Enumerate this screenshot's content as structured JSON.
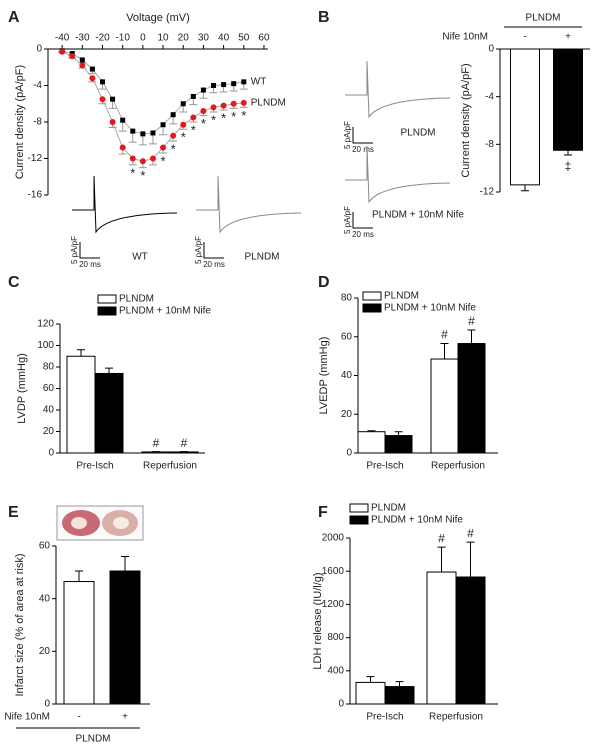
{
  "chart_data": [
    {
      "panel": "A",
      "type": "line",
      "title": "Voltage (mV)",
      "y_label": "Current density (pA/pF)",
      "x": [
        -40,
        -35,
        -30,
        -25,
        -20,
        -15,
        -10,
        -5,
        0,
        5,
        10,
        15,
        20,
        25,
        30,
        35,
        40,
        45,
        50
      ],
      "series": [
        {
          "name": "WT",
          "color": "#000000",
          "marker": "square",
          "values": [
            -0.2,
            -0.5,
            -1.2,
            -2.2,
            -3.6,
            -5.5,
            -7.8,
            -9.0,
            -9.3,
            -9.2,
            -8.3,
            -7.2,
            -6.0,
            -5.2,
            -4.5,
            -4.0,
            -3.9,
            -3.8,
            -3.6
          ],
          "errors": [
            0.1,
            0.2,
            0.3,
            0.5,
            0.8,
            1.0,
            1.2,
            1.2,
            1.2,
            1.2,
            1.1,
            1.0,
            0.9,
            0.9,
            0.9,
            0.8,
            0.8,
            0.8,
            0.8
          ]
        },
        {
          "name": "PLNDM",
          "color": "#e31a1c",
          "marker": "circle",
          "values": [
            -0.3,
            -0.8,
            -1.8,
            -3.2,
            -5.5,
            -8.0,
            -10.8,
            -12.0,
            -12.3,
            -12.0,
            -10.8,
            -9.5,
            -8.3,
            -7.5,
            -6.8,
            -6.4,
            -6.2,
            -6.0,
            -5.9
          ],
          "errors": [
            0.1,
            0.2,
            0.3,
            0.4,
            0.5,
            0.6,
            0.7,
            0.7,
            0.7,
            0.7,
            0.6,
            0.6,
            0.5,
            0.5,
            0.5,
            0.5,
            0.5,
            0.5,
            0.5
          ]
        }
      ],
      "xlim": [
        -47,
        62
      ],
      "xticks": [
        -40,
        -30,
        -20,
        -10,
        0,
        10,
        20,
        30,
        40,
        50,
        60
      ],
      "ylim": [
        -16,
        0
      ],
      "yticks": [
        0,
        -4,
        -8,
        -12,
        -16
      ],
      "annotations": [
        {
          "x": -5,
          "series": "PLNDM",
          "text": "*"
        },
        {
          "x": 0,
          "series": "PLNDM",
          "text": "*"
        },
        {
          "x": 10,
          "series": "PLNDM",
          "text": "*"
        },
        {
          "x": 15,
          "series": "PLNDM",
          "text": "*"
        },
        {
          "x": 20,
          "series": "PLNDM",
          "text": "*"
        },
        {
          "x": 25,
          "series": "PLNDM",
          "text": "*"
        },
        {
          "x": 30,
          "series": "PLNDM",
          "text": "*"
        },
        {
          "x": 35,
          "series": "PLNDM",
          "text": "*"
        },
        {
          "x": 40,
          "series": "PLNDM",
          "text": "*"
        },
        {
          "x": 45,
          "series": "PLNDM",
          "text": "*"
        },
        {
          "x": 50,
          "series": "PLNDM",
          "text": "*"
        }
      ],
      "trace_labels": [
        "WT",
        "PLNDM"
      ],
      "trace_colors": [
        "#000000",
        "#888888"
      ],
      "scale_labels": [
        "5 pA/pF",
        "20 ms"
      ]
    },
    {
      "panel": "B",
      "type": "bar",
      "header": "PLNDM",
      "row_label": "Nife 10nM",
      "y_label": "Current density (pA/pF)",
      "categories": [
        "-",
        "+"
      ],
      "category_position": "top",
      "values": [
        -11.4,
        -8.5
      ],
      "errors": [
        0.5,
        0.4
      ],
      "colors": [
        "#ffffff",
        "#000000"
      ],
      "ylim": [
        -12,
        0
      ],
      "yticks": [
        0,
        -4,
        -8,
        -12
      ],
      "annotations": [
        {
          "category": "+",
          "text": "‡"
        }
      ],
      "trace_labels": [
        "PLNDM",
        "PLNDM + 10nM Nife"
      ],
      "trace_colors": [
        "#888888",
        "#888888"
      ],
      "scale_labels": [
        "5 pA/pF",
        "20 ms"
      ]
    },
    {
      "panel": "C",
      "type": "bar",
      "y_label": "LVDP (mmHg)",
      "categories": [
        "Pre-Isch",
        "Reperfusion"
      ],
      "category_position": "bottom",
      "series": [
        {
          "name": "PLNDM",
          "color": "#ffffff",
          "values": [
            90,
            1
          ],
          "errors": [
            6,
            0.3
          ]
        },
        {
          "name": "PLNDM + 10nM Nife",
          "color": "#000000",
          "values": [
            74,
            1
          ],
          "errors": [
            5,
            0.3
          ]
        }
      ],
      "ylim": [
        0,
        120
      ],
      "yticks": [
        0,
        20,
        40,
        60,
        80,
        100,
        120
      ],
      "legend": "top-left",
      "annotations": [
        {
          "category": "Reperfusion",
          "series": "PLNDM",
          "text": "#"
        },
        {
          "category": "Reperfusion",
          "series": "PLNDM + 10nM Nife",
          "text": "#"
        }
      ]
    },
    {
      "panel": "D",
      "type": "bar",
      "y_label": "LVEDP (mmHg)",
      "categories": [
        "Pre-Isch",
        "Reperfusion"
      ],
      "category_position": "bottom",
      "series": [
        {
          "name": "PLNDM",
          "color": "#ffffff",
          "values": [
            11,
            48.5
          ],
          "errors": [
            0.5,
            8
          ]
        },
        {
          "name": "PLNDM + 10nM Nife",
          "color": "#000000",
          "values": [
            9,
            56.5
          ],
          "errors": [
            2,
            7
          ]
        }
      ],
      "ylim": [
        0,
        80
      ],
      "yticks": [
        0,
        20,
        40,
        60,
        80
      ],
      "legend": "top-left",
      "annotations": [
        {
          "category": "Reperfusion",
          "series": "PLNDM",
          "text": "#"
        },
        {
          "category": "Reperfusion",
          "series": "PLNDM + 10nM Nife",
          "text": "#"
        }
      ]
    },
    {
      "panel": "E",
      "type": "bar",
      "footer": "PLNDM",
      "row_label": "Nife 10nM",
      "y_label": "Infarct size (% of area at risk)",
      "categories": [
        "-",
        "+"
      ],
      "category_position": "bottom",
      "values": [
        46.5,
        50.5
      ],
      "errors": [
        4,
        5.5
      ],
      "colors": [
        "#ffffff",
        "#000000"
      ],
      "ylim": [
        0,
        60
      ],
      "yticks": [
        0,
        20,
        40,
        60
      ]
    },
    {
      "panel": "F",
      "type": "bar",
      "y_label": "LDH release (IU/l/g)",
      "categories": [
        "Pre-Isch",
        "Reperfusion"
      ],
      "category_position": "bottom",
      "series": [
        {
          "name": "PLNDM",
          "color": "#ffffff",
          "values": [
            260,
            1590
          ],
          "errors": [
            70,
            300
          ]
        },
        {
          "name": "PLNDM + 10nM Nife",
          "color": "#000000",
          "values": [
            210,
            1530
          ],
          "errors": [
            60,
            420
          ]
        }
      ],
      "ylim": [
        0,
        2000
      ],
      "yticks": [
        0,
        400,
        800,
        1200,
        1600,
        2000
      ],
      "legend": "top-left",
      "annotations": [
        {
          "category": "Reperfusion",
          "series": "PLNDM",
          "text": "#"
        },
        {
          "category": "Reperfusion",
          "series": "PLNDM + 10nM Nife",
          "text": "#"
        }
      ]
    }
  ]
}
